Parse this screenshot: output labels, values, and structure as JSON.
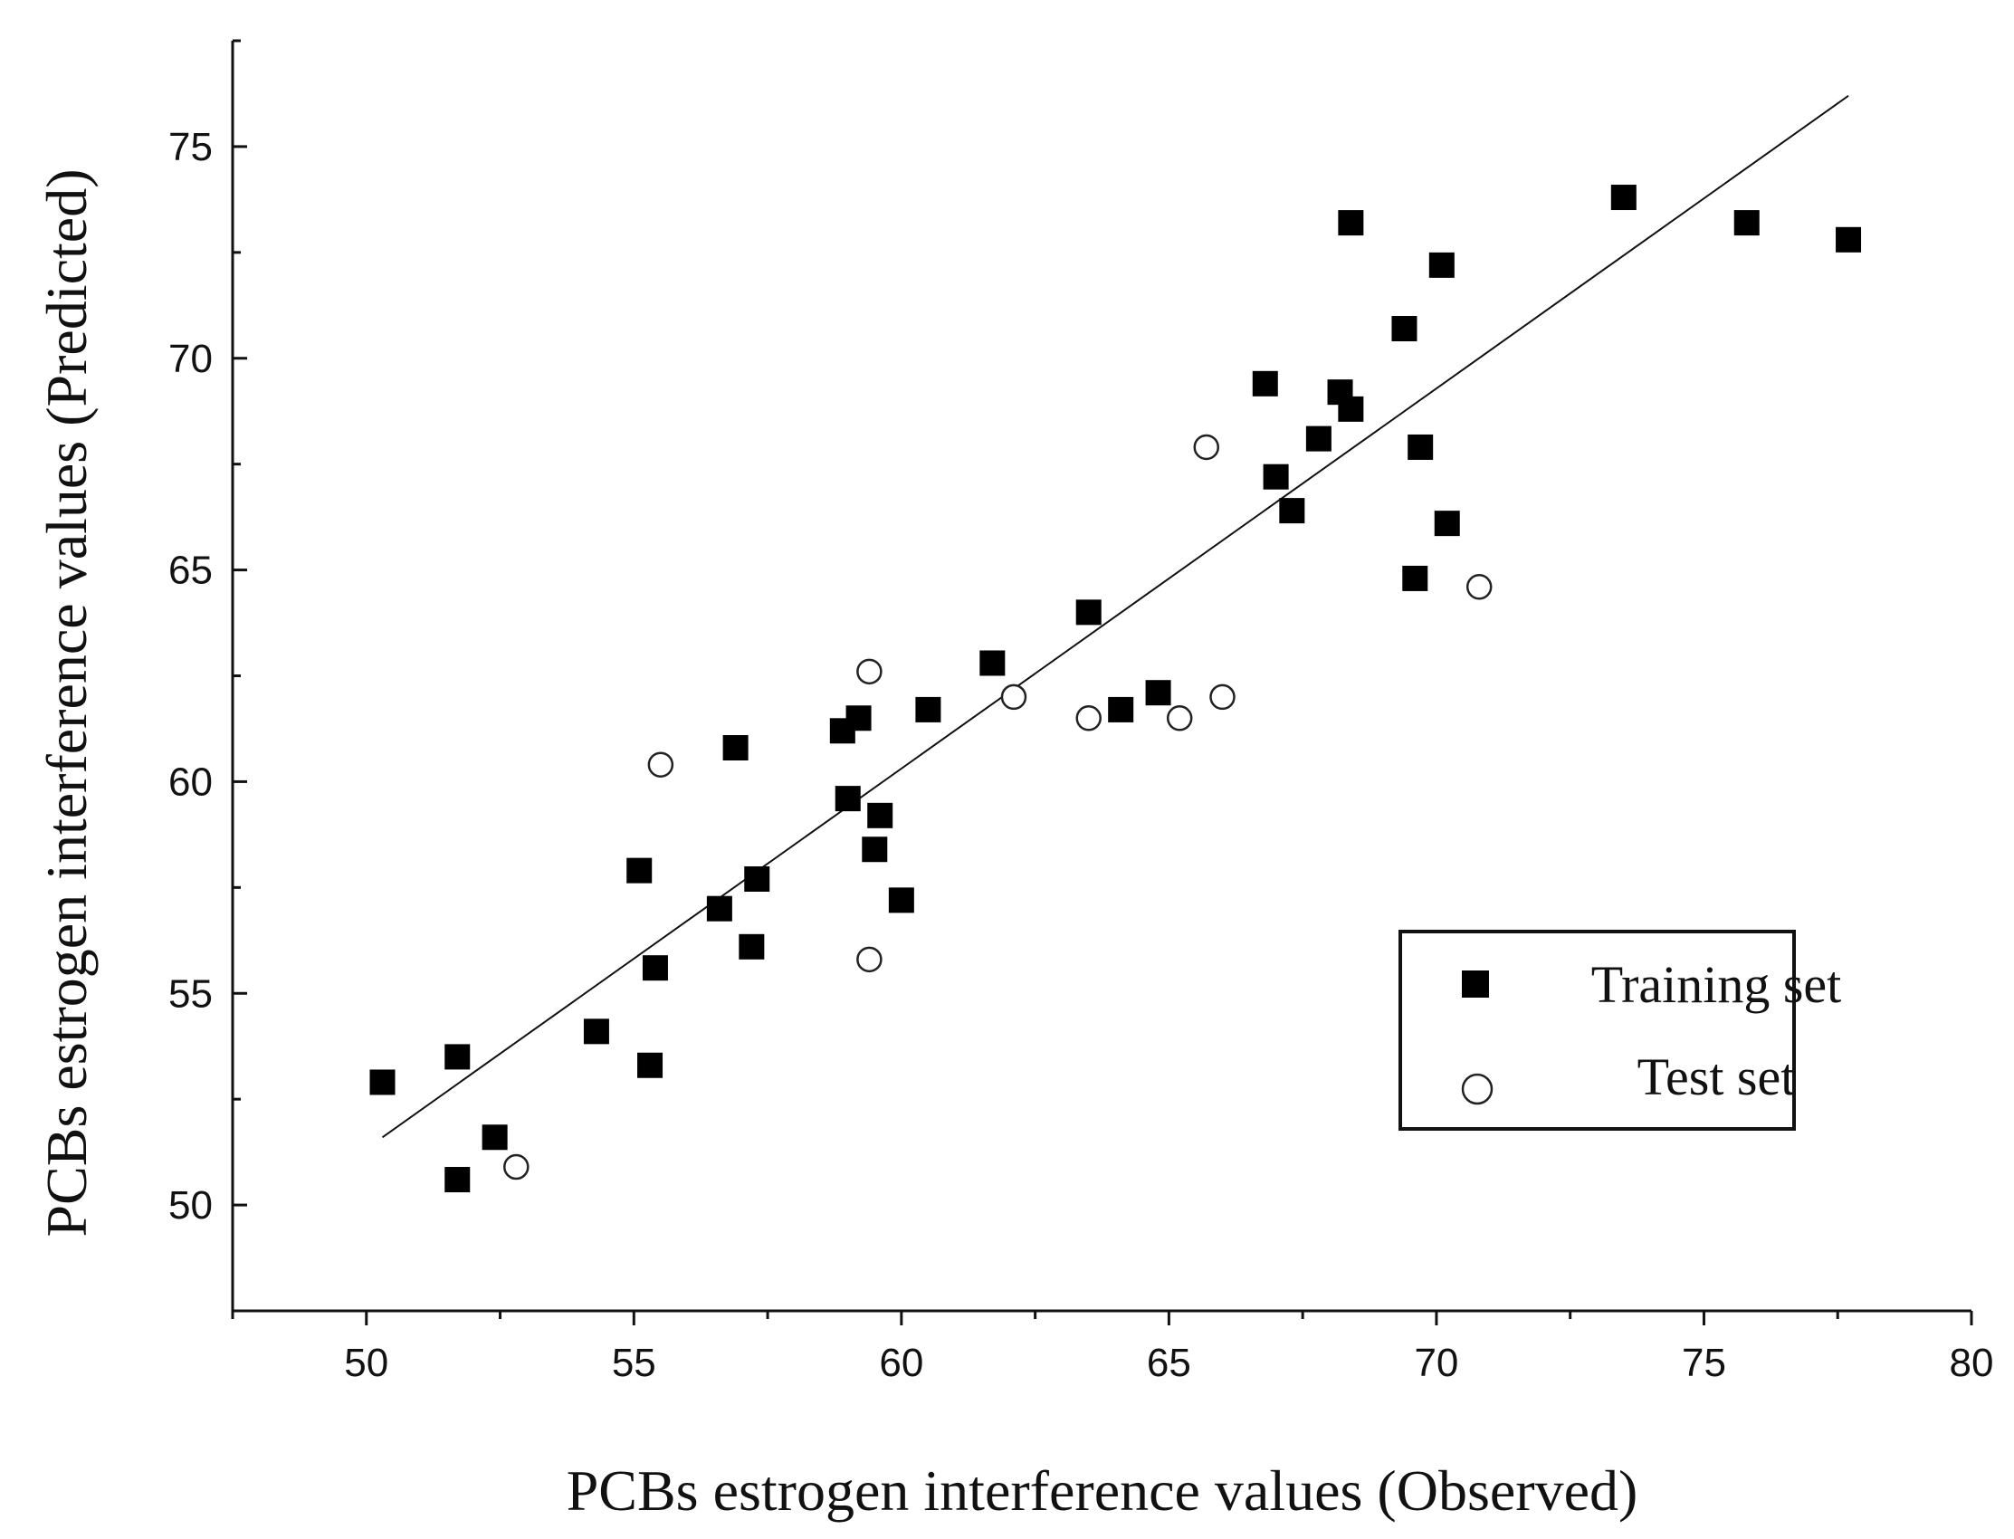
{
  "chart_data": {
    "type": "scatter",
    "xlabel": "PCBs estrogen interference values (Observed)",
    "ylabel": "PCBs estrogen interference values (Predicted)",
    "xlim": [
      47.5,
      80
    ],
    "ylim": [
      47.5,
      77.5
    ],
    "xticks": [
      50,
      55,
      60,
      65,
      70,
      75,
      80
    ],
    "yticks": [
      50,
      55,
      60,
      65,
      70,
      75
    ],
    "fit_line": {
      "x": [
        50.3,
        77.7
      ],
      "y": [
        51.6,
        76.2
      ]
    },
    "series": [
      {
        "name": "Training set",
        "marker": "filled-square",
        "points": [
          [
            50.3,
            52.9
          ],
          [
            51.7,
            53.5
          ],
          [
            51.7,
            50.6
          ],
          [
            52.4,
            51.6
          ],
          [
            54.3,
            54.1
          ],
          [
            55.1,
            57.9
          ],
          [
            55.3,
            53.3
          ],
          [
            55.4,
            55.6
          ],
          [
            56.6,
            57.0
          ],
          [
            56.9,
            60.8
          ],
          [
            57.2,
            56.1
          ],
          [
            57.3,
            57.7
          ],
          [
            58.9,
            61.2
          ],
          [
            59.0,
            59.6
          ],
          [
            59.2,
            61.5
          ],
          [
            59.5,
            58.4
          ],
          [
            59.6,
            59.2
          ],
          [
            60.0,
            57.2
          ],
          [
            60.5,
            61.7
          ],
          [
            61.7,
            62.8
          ],
          [
            63.5,
            64.0
          ],
          [
            64.1,
            61.7
          ],
          [
            64.8,
            62.1
          ],
          [
            66.8,
            69.4
          ],
          [
            67.0,
            67.2
          ],
          [
            67.3,
            66.4
          ],
          [
            67.8,
            68.1
          ],
          [
            68.2,
            69.2
          ],
          [
            68.4,
            68.8
          ],
          [
            68.4,
            73.2
          ],
          [
            69.4,
            70.7
          ],
          [
            69.7,
            67.9
          ],
          [
            69.6,
            64.8
          ],
          [
            70.1,
            72.2
          ],
          [
            70.2,
            66.1
          ],
          [
            73.5,
            73.8
          ],
          [
            75.8,
            73.2
          ],
          [
            77.7,
            72.8
          ]
        ]
      },
      {
        "name": "Test set",
        "marker": "open-circle",
        "points": [
          [
            52.8,
            50.9
          ],
          [
            55.5,
            60.4
          ],
          [
            59.4,
            62.6
          ],
          [
            59.4,
            55.8
          ],
          [
            62.1,
            62.0
          ],
          [
            63.5,
            61.5
          ],
          [
            65.2,
            61.5
          ],
          [
            65.7,
            67.9
          ],
          [
            66.0,
            62.0
          ],
          [
            70.8,
            64.6
          ]
        ]
      }
    ],
    "legend": {
      "position": "bottom-right",
      "entries": [
        "Training set",
        "Test set"
      ]
    }
  }
}
